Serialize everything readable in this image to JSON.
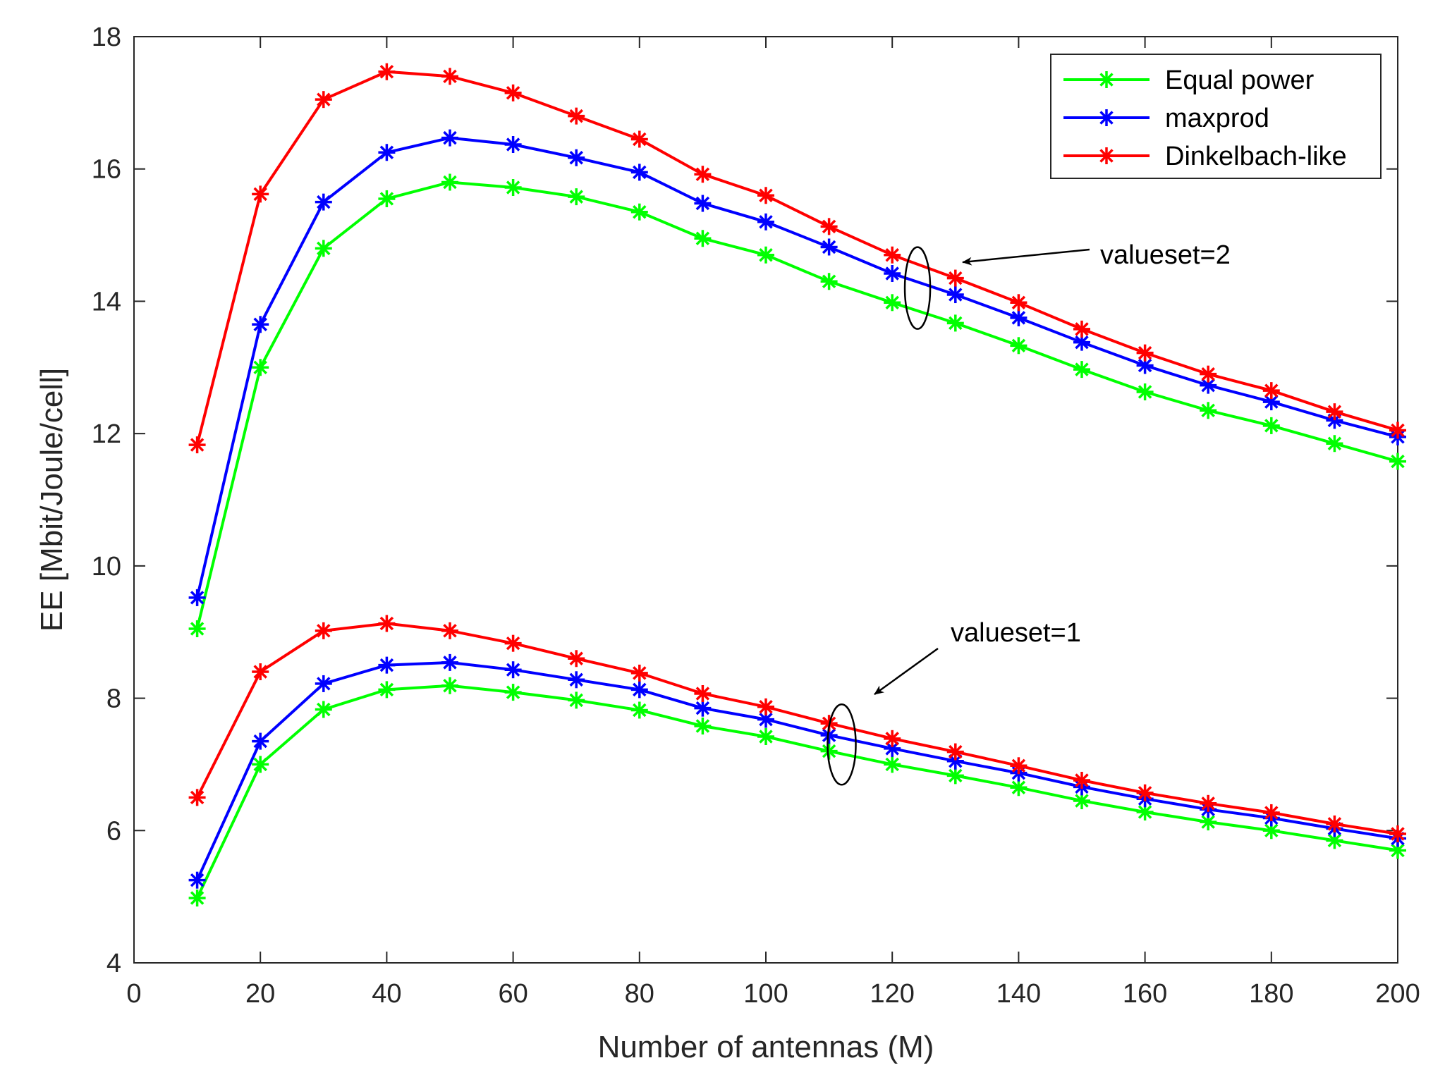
{
  "chart_data": {
    "type": "line",
    "title": "",
    "xlabel": "Number of antennas (M)",
    "ylabel": "EE [Mbit/Joule/cell]",
    "xlim": [
      0,
      200
    ],
    "ylim": [
      4,
      18
    ],
    "xticks": [
      0,
      20,
      40,
      60,
      80,
      100,
      120,
      140,
      160,
      180,
      200
    ],
    "yticks": [
      4,
      6,
      8,
      10,
      12,
      14,
      16,
      18
    ],
    "grid": false,
    "legend_position": "top-right",
    "x": [
      10,
      20,
      30,
      40,
      50,
      60,
      70,
      80,
      90,
      100,
      110,
      120,
      130,
      140,
      150,
      160,
      170,
      180,
      190,
      200
    ],
    "series": [
      {
        "name": "Equal power",
        "group": "valueset=2",
        "color": "#00ff00",
        "values": [
          9.05,
          13.0,
          14.8,
          15.55,
          15.8,
          15.72,
          15.58,
          15.35,
          14.95,
          14.7,
          14.3,
          13.98,
          13.67,
          13.33,
          12.97,
          12.63,
          12.35,
          12.12,
          11.85,
          11.58
        ]
      },
      {
        "name": "maxprod",
        "group": "valueset=2",
        "color": "#0000ff",
        "values": [
          9.52,
          13.65,
          15.5,
          16.25,
          16.47,
          16.37,
          16.17,
          15.95,
          15.48,
          15.2,
          14.82,
          14.42,
          14.1,
          13.75,
          13.38,
          13.03,
          12.73,
          12.48,
          12.2,
          11.95
        ]
      },
      {
        "name": "Dinkelbach-like",
        "group": "valueset=2",
        "color": "#ff0000",
        "values": [
          11.83,
          15.62,
          17.05,
          17.47,
          17.4,
          17.15,
          16.8,
          16.45,
          15.92,
          15.6,
          15.13,
          14.7,
          14.35,
          13.98,
          13.58,
          13.22,
          12.9,
          12.65,
          12.33,
          12.05
        ]
      },
      {
        "name": "Equal power",
        "group": "valueset=1",
        "color": "#00ff00",
        "values": [
          4.98,
          7.0,
          7.83,
          8.13,
          8.19,
          8.09,
          7.97,
          7.82,
          7.58,
          7.42,
          7.2,
          7.0,
          6.83,
          6.65,
          6.45,
          6.28,
          6.13,
          6.0,
          5.85,
          5.7
        ]
      },
      {
        "name": "maxprod",
        "group": "valueset=1",
        "color": "#0000ff",
        "values": [
          5.25,
          7.35,
          8.22,
          8.5,
          8.54,
          8.43,
          8.28,
          8.13,
          7.85,
          7.68,
          7.44,
          7.24,
          7.05,
          6.87,
          6.66,
          6.48,
          6.32,
          6.19,
          6.03,
          5.88
        ]
      },
      {
        "name": "Dinkelbach-like",
        "group": "valueset=1",
        "color": "#ff0000",
        "values": [
          6.5,
          8.4,
          9.02,
          9.13,
          9.02,
          8.83,
          8.6,
          8.38,
          8.07,
          7.87,
          7.62,
          7.39,
          7.19,
          6.98,
          6.76,
          6.57,
          6.41,
          6.27,
          6.1,
          5.95
        ]
      }
    ],
    "legend": [
      {
        "label": "Equal power",
        "color": "#00ff00"
      },
      {
        "label": "maxprod",
        "color": "#0000ff"
      },
      {
        "label": "Dinkelbach-like",
        "color": "#ff0000"
      }
    ],
    "annotations": [
      {
        "text": "valueset=2",
        "target_x": 124,
        "target_y": 14.2
      },
      {
        "text": "valueset=1",
        "target_x": 112,
        "target_y": 7.3
      }
    ]
  }
}
